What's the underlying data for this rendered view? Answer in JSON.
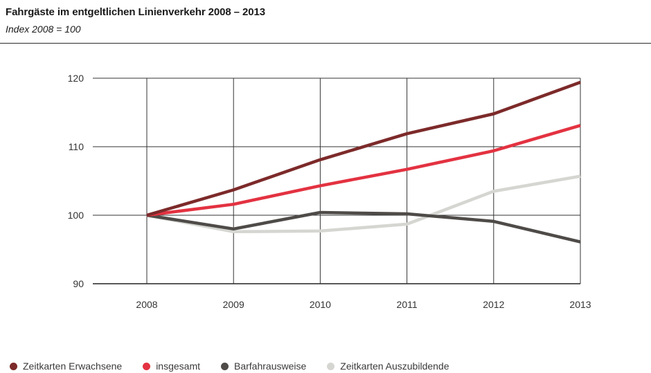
{
  "header": {
    "title": "Fahrgäste im entgeltlichen Linienverkehr 2008 – 2013",
    "subtitle": "Index 2008 = 100"
  },
  "chart_data": {
    "type": "line",
    "title": "Fahrgäste im entgeltlichen Linienverkehr 2008 – 2013",
    "subtitle": "Index 2008 = 100",
    "x": [
      "2008",
      "2009",
      "2010",
      "2011",
      "2012",
      "2013"
    ],
    "ylim": [
      90,
      120
    ],
    "yticks": [
      90,
      100,
      110,
      120
    ],
    "grid": true,
    "legend_position": "bottom",
    "series": [
      {
        "name": "Zeitkarten Auszubildende",
        "color": "#d5d6d1",
        "values": [
          100,
          97.6,
          97.7,
          98.7,
          103.5,
          105.7
        ]
      },
      {
        "name": "Barfahrausweise",
        "color": "#4e4b48",
        "values": [
          100,
          98.0,
          100.4,
          100.2,
          99.1,
          96.1
        ]
      },
      {
        "name": "insgesamt",
        "color": "#e33241",
        "values": [
          100,
          101.6,
          104.3,
          106.7,
          109.4,
          113.1
        ]
      },
      {
        "name": "Zeitkarten Erwachsene",
        "color": "#7d2a2a",
        "values": [
          100,
          103.7,
          108.1,
          111.9,
          114.8,
          119.4
        ]
      }
    ]
  },
  "legend": [
    {
      "label": "Zeitkarten Erwachsene",
      "color": "#7d2a2a"
    },
    {
      "label": "insgesamt",
      "color": "#e33241"
    },
    {
      "label": "Barfahrausweise",
      "color": "#4e4b48"
    },
    {
      "label": "Zeitkarten Auszubildende",
      "color": "#d5d6d1"
    }
  ]
}
